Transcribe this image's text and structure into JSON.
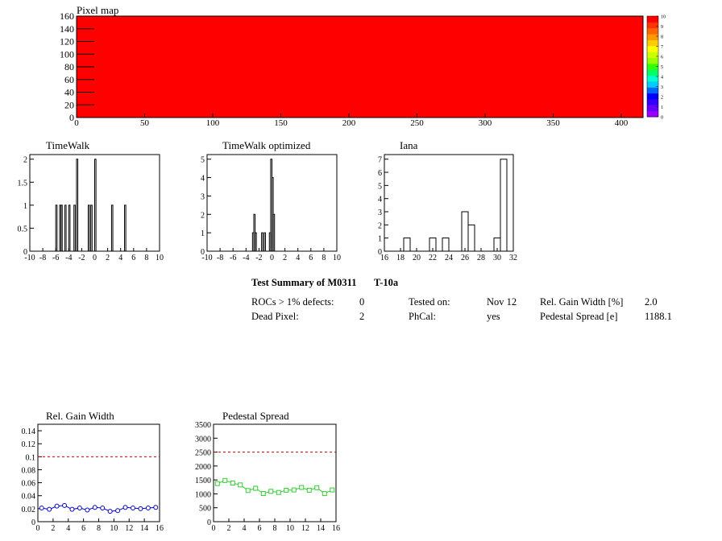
{
  "chart_data": [
    {
      "id": "pixelmap",
      "type": "heatmap",
      "title": "Pixel map",
      "xlim": [
        0,
        416
      ],
      "ylim": [
        0,
        160
      ],
      "xticks": [
        0,
        50,
        100,
        150,
        200,
        250,
        300,
        350,
        400
      ],
      "yticks": [
        0,
        20,
        40,
        60,
        80,
        100,
        120,
        140,
        160
      ],
      "fill_value": 10,
      "fill_color": "#ff0000",
      "palette_range": [
        0,
        10
      ],
      "palette_ticks": [
        0,
        1,
        2,
        3,
        4,
        5,
        6,
        7,
        8,
        9,
        10
      ],
      "palette_colors": [
        "#9900ff",
        "#6600ff",
        "#3300ff",
        "#0000ff",
        "#0066ff",
        "#00ccff",
        "#00ffcc",
        "#00ff66",
        "#33ff00",
        "#99ff00",
        "#ccff00",
        "#ffff00",
        "#ffcc00",
        "#ff9900",
        "#ff6600",
        "#ff3300",
        "#ff0000"
      ]
    },
    {
      "id": "timewalk",
      "type": "bar",
      "title": "TimeWalk",
      "xlim": [
        -10,
        10
      ],
      "ylim": [
        0,
        2.1
      ],
      "xticks": [
        -10,
        -8,
        -6,
        -4,
        -2,
        0,
        2,
        4,
        6,
        8,
        10
      ],
      "yticks": [
        0,
        0.5,
        1,
        1.5,
        2
      ],
      "ytick_labels": [
        "0",
        "0.5",
        "1",
        "1.5",
        "2"
      ],
      "bin_width": 0.2,
      "bins": [
        {
          "x": -6.0,
          "y": 1
        },
        {
          "x": -5.4,
          "y": 1
        },
        {
          "x": -5.2,
          "y": 1
        },
        {
          "x": -4.6,
          "y": 1
        },
        {
          "x": -4.0,
          "y": 1
        },
        {
          "x": -3.2,
          "y": 1
        },
        {
          "x": -2.8,
          "y": 2
        },
        {
          "x": -1.0,
          "y": 1
        },
        {
          "x": -0.6,
          "y": 1
        },
        {
          "x": 0.0,
          "y": 2
        },
        {
          "x": 2.6,
          "y": 1
        },
        {
          "x": 4.6,
          "y": 1
        }
      ]
    },
    {
      "id": "timewalk_opt",
      "type": "bar",
      "title": "TimeWalk optimized",
      "xlim": [
        -10,
        10
      ],
      "ylim": [
        0,
        5.25
      ],
      "xticks": [
        -10,
        -8,
        -6,
        -4,
        -2,
        0,
        2,
        4,
        6,
        8,
        10
      ],
      "yticks": [
        0,
        1,
        2,
        3,
        4,
        5
      ],
      "ytick_labels": [
        "0",
        "1",
        "2",
        "3",
        "4",
        "5"
      ],
      "bin_width": 0.2,
      "bins": [
        {
          "x": -3.0,
          "y": 1
        },
        {
          "x": -2.8,
          "y": 2
        },
        {
          "x": -2.6,
          "y": 1
        },
        {
          "x": -1.6,
          "y": 1
        },
        {
          "x": -1.2,
          "y": 1
        },
        {
          "x": -0.4,
          "y": 1
        },
        {
          "x": -0.2,
          "y": 5
        },
        {
          "x": 0.0,
          "y": 4
        },
        {
          "x": 0.2,
          "y": 2
        }
      ]
    },
    {
      "id": "iana",
      "type": "bar",
      "title": "Iana",
      "xlim": [
        16,
        32
      ],
      "ylim": [
        0,
        7.35
      ],
      "xticks": [
        16,
        18,
        20,
        22,
        24,
        26,
        28,
        30,
        32
      ],
      "yticks": [
        0,
        1,
        2,
        3,
        4,
        5,
        6,
        7
      ],
      "ytick_labels": [
        "0",
        "1",
        "2",
        "3",
        "4",
        "5",
        "6",
        "7"
      ],
      "bin_width": 0.8,
      "bins": [
        {
          "x": 18.4,
          "y": 1
        },
        {
          "x": 21.6,
          "y": 1
        },
        {
          "x": 23.2,
          "y": 1
        },
        {
          "x": 25.6,
          "y": 3
        },
        {
          "x": 26.4,
          "y": 2
        },
        {
          "x": 29.6,
          "y": 1
        },
        {
          "x": 30.4,
          "y": 7
        }
      ]
    },
    {
      "id": "relgain",
      "type": "line",
      "title": "Rel. Gain Width",
      "xlim": [
        0,
        16
      ],
      "ylim": [
        0,
        0.15
      ],
      "xticks": [
        0,
        2,
        4,
        6,
        8,
        10,
        12,
        14,
        16
      ],
      "yticks": [
        0,
        0.02,
        0.04,
        0.06,
        0.08,
        0.1,
        0.12,
        0.14
      ],
      "ytick_labels": [
        "0",
        "0.02",
        "0.04",
        "0.06",
        "0.08",
        "0.1",
        "0.12",
        "0.14"
      ],
      "ref_line": 0.1,
      "ref_color": "#cc0000",
      "series_color": "#0000cc",
      "marker": "circle",
      "x": [
        0,
        1,
        2,
        3,
        4,
        5,
        6,
        7,
        8,
        9,
        10,
        11,
        12,
        13,
        14,
        15
      ],
      "y": [
        0.021,
        0.019,
        0.024,
        0.025,
        0.019,
        0.021,
        0.018,
        0.022,
        0.021,
        0.016,
        0.017,
        0.022,
        0.021,
        0.02,
        0.021,
        0.022
      ]
    },
    {
      "id": "pedestal",
      "type": "line",
      "title": "Pedestal Spread",
      "xlim": [
        0,
        16
      ],
      "ylim": [
        0,
        3500
      ],
      "xticks": [
        0,
        2,
        4,
        6,
        8,
        10,
        12,
        14,
        16
      ],
      "yticks": [
        0,
        500,
        1000,
        1500,
        2000,
        2500,
        3000,
        3500
      ],
      "ytick_labels": [
        "0",
        "500",
        "1000",
        "1500",
        "2000",
        "2500",
        "3000",
        "3500"
      ],
      "ref_line": 2500,
      "ref_color": "#cc0000",
      "series_color": "#33cc33",
      "marker": "square",
      "x": [
        0,
        1,
        2,
        3,
        4,
        5,
        6,
        7,
        8,
        9,
        10,
        11,
        12,
        13,
        14,
        15
      ],
      "y": [
        1370,
        1480,
        1390,
        1320,
        1120,
        1200,
        1010,
        1090,
        1050,
        1130,
        1140,
        1230,
        1130,
        1220,
        1010,
        1140
      ]
    }
  ],
  "summary": {
    "title": "Test Summary of M0311",
    "test": "T-10a",
    "rocs_label": "ROCs > 1% defects:",
    "rocs_value": "0",
    "dead_label": "Dead Pixel:",
    "dead_value": "2",
    "tested_label": "Tested on:",
    "tested_value": "Nov 12",
    "phcal_label": "PhCal:",
    "phcal_value": "yes",
    "gain_label": "Rel. Gain Width [%]",
    "gain_value": "2.0",
    "ped_label": "Pedestal Spread [e]",
    "ped_value": "1188.1"
  }
}
